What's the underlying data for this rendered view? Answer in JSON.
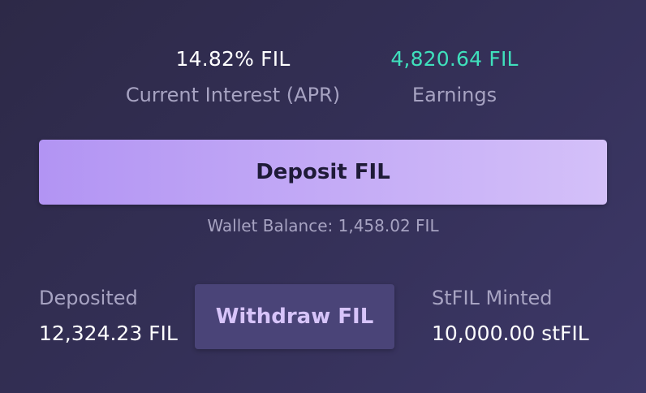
{
  "stats": {
    "apr": {
      "value": "14.82% FIL",
      "label": "Current Interest (APR)"
    },
    "earnings": {
      "value": "4,820.64 FIL",
      "label": "Earnings"
    }
  },
  "deposit_button": {
    "label": "Deposit FIL"
  },
  "wallet_balance": "Wallet Balance: 1,458.02 FIL",
  "deposited": {
    "label": "Deposited",
    "value": "12,324.23 FIL"
  },
  "withdraw_button": {
    "label": "Withdraw FIL"
  },
  "minted": {
    "label": "StFIL Minted",
    "value": "10,000.00 stFIL"
  },
  "colors": {
    "accent_green": "#3fe0bc",
    "deposit_button": "#b294f3",
    "withdraw_button": "#4a4478",
    "muted_text": "#a7a3c2"
  }
}
